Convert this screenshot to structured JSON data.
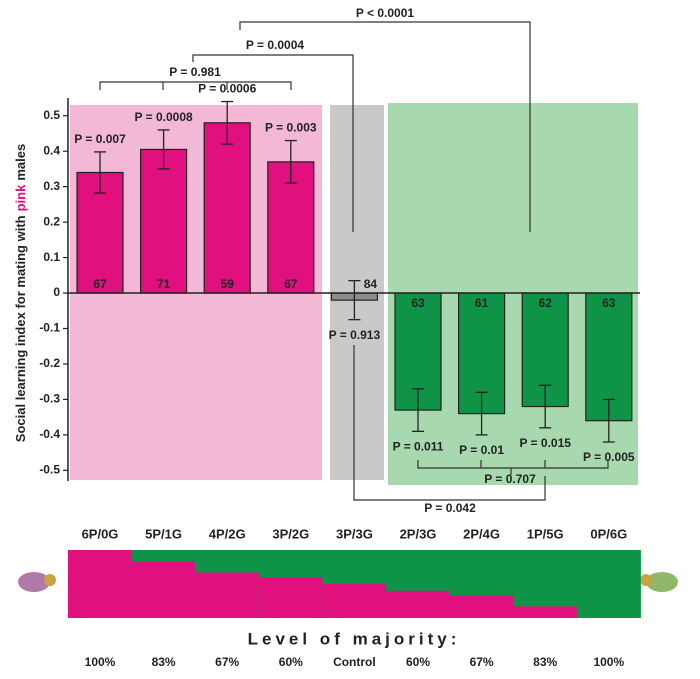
{
  "chart_data": {
    "type": "bar",
    "categories": [
      "6P/0G",
      "5P/1G",
      "4P/2G",
      "3P/2G",
      "3P/3G",
      "2P/3G",
      "2P/4G",
      "1P/5G",
      "0P/6G"
    ],
    "values": [
      0.34,
      0.405,
      0.48,
      0.37,
      -0.02,
      -0.33,
      -0.34,
      -0.32,
      -0.36
    ],
    "errors": [
      0.058,
      0.055,
      0.06,
      0.06,
      0.055,
      0.06,
      0.06,
      0.06,
      0.06
    ],
    "colors": [
      "#e0107e",
      "#e0107e",
      "#e0107e",
      "#e0107e",
      "#8c8c8c",
      "#0f9447",
      "#0f9447",
      "#0f9447",
      "#0f9447"
    ],
    "sample_sizes": [
      "67",
      "71",
      "59",
      "67",
      "84",
      "63",
      "61",
      "62",
      "63"
    ],
    "p_labels": [
      "P = 0.007",
      "P = 0.0008",
      "P = 0.0006",
      "P = 0.003",
      "P = 0.913",
      "P = 0.011",
      "P = 0.01",
      "P = 0.015",
      "P = 0.005"
    ],
    "comparisons": [
      "P < 0.0001",
      "P = 0.0004",
      "P = 0.981",
      "P = 0.042",
      "P = 0.707"
    ],
    "ylabel": [
      "Social learning index for mating with",
      "pink",
      "males"
    ],
    "ylim": [
      -0.53,
      0.55
    ],
    "yticks": [
      0.5,
      0.4,
      0.3,
      0.2,
      0.1,
      0,
      -0.1,
      -0.2,
      -0.3,
      -0.4,
      -0.5
    ],
    "majority_title": "Level of majority:",
    "majority_levels": [
      "100%",
      "83%",
      "67%",
      "60%",
      "Control",
      "60%",
      "67%",
      "83%",
      "100%"
    ],
    "pink_share": [
      1,
      0.83,
      0.67,
      0.6,
      0.5,
      0.4,
      0.33,
      0.17,
      0
    ]
  }
}
